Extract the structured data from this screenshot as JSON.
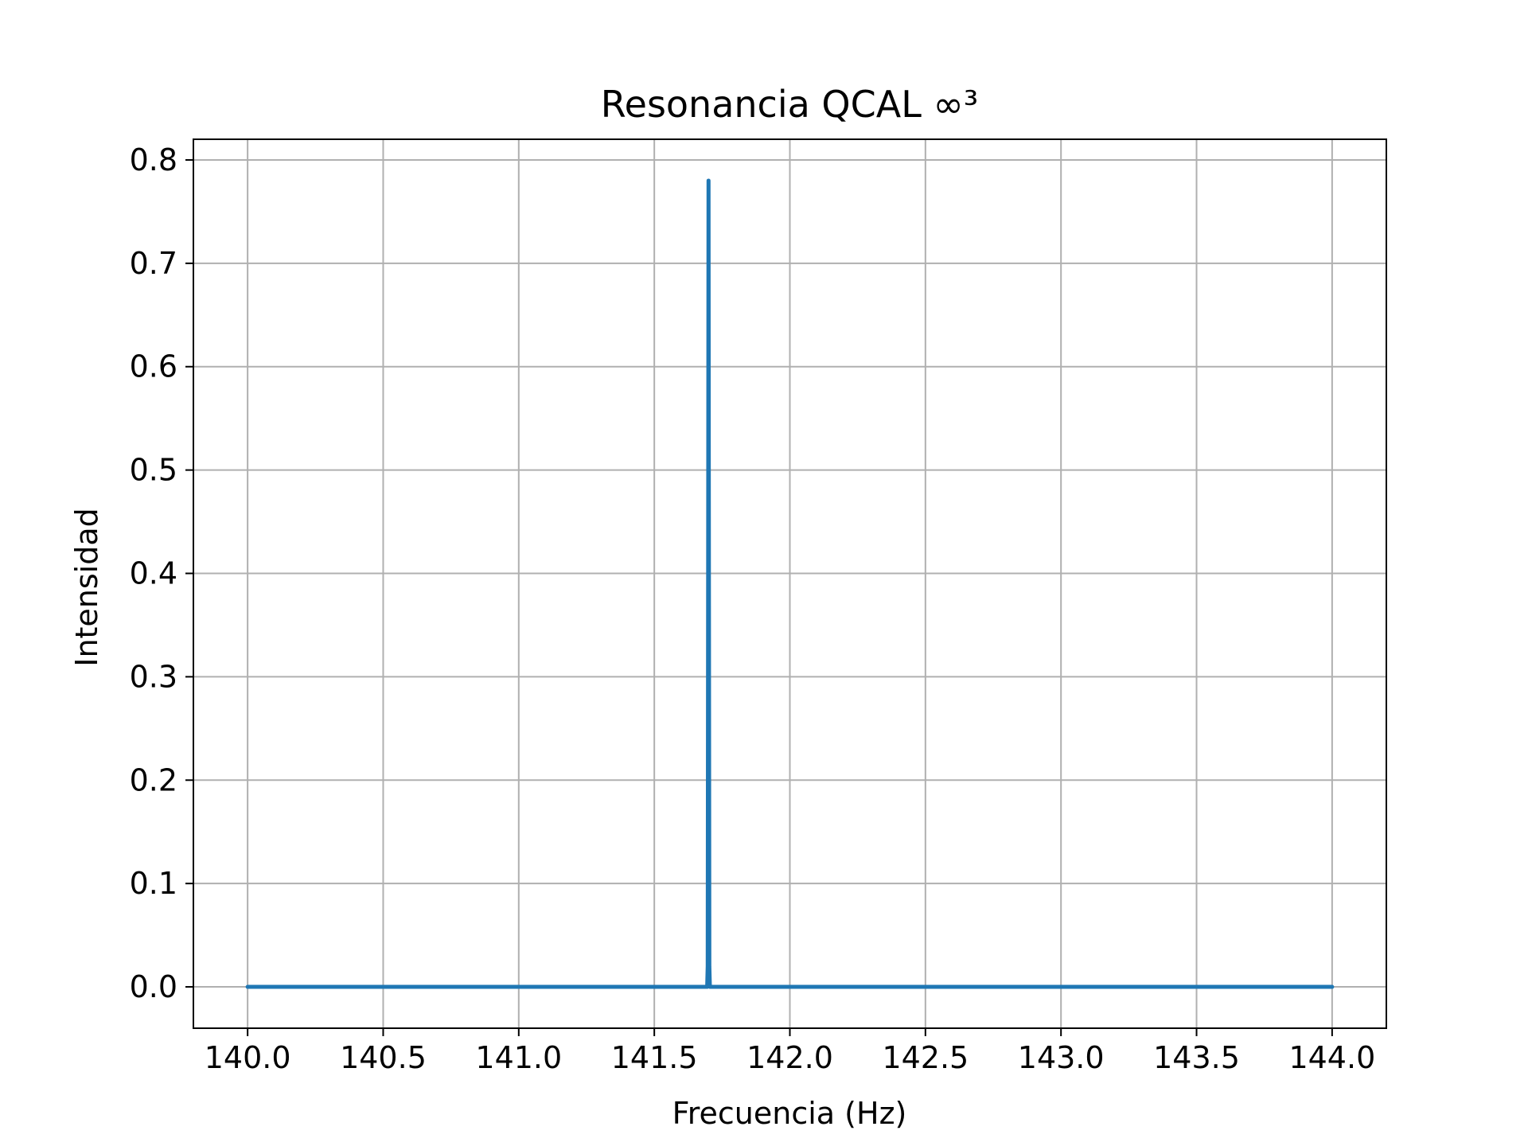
{
  "chart_data": {
    "type": "line",
    "title": "Resonancia QCAL ∞³",
    "xlabel": "Frecuencia (Hz)",
    "ylabel": "Intensidad",
    "xlim": [
      139.8,
      144.2
    ],
    "ylim": [
      -0.04,
      0.82
    ],
    "xticks": [
      140.0,
      140.5,
      141.0,
      141.5,
      142.0,
      142.5,
      143.0,
      143.5,
      144.0
    ],
    "xtick_labels": [
      "140.0",
      "140.5",
      "141.0",
      "141.5",
      "142.0",
      "142.5",
      "143.0",
      "143.5",
      "144.0"
    ],
    "yticks": [
      0.0,
      0.1,
      0.2,
      0.3,
      0.4,
      0.5,
      0.6,
      0.7,
      0.8
    ],
    "ytick_labels": [
      "0.0",
      "0.1",
      "0.2",
      "0.3",
      "0.4",
      "0.5",
      "0.6",
      "0.7",
      "0.8"
    ],
    "grid": true,
    "series": [
      {
        "color": "#1f77b4",
        "x": [
          140.0,
          141.695,
          141.697,
          141.699,
          141.7,
          141.701,
          141.703,
          141.705,
          144.0
        ],
        "y": [
          0.0,
          0.0,
          0.02,
          0.5,
          0.78,
          0.5,
          0.02,
          0.0,
          0.0
        ]
      }
    ]
  }
}
